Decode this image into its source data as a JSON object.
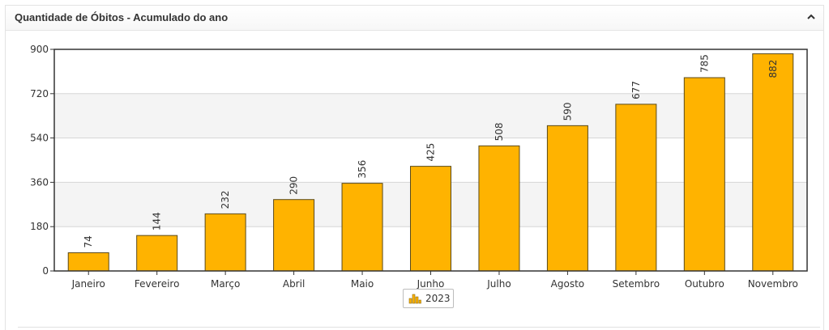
{
  "panel": {
    "title": "Quantidade de Óbitos - Acumulado do ano",
    "collapse_icon": "chevron-up-icon"
  },
  "colors": {
    "bar_fill": "#FFB300",
    "bar_stroke": "#5a4a1a",
    "band": "#f4f4f4",
    "grid": "#d6d6d6"
  },
  "chart_data": {
    "type": "bar",
    "title": "",
    "xlabel": "",
    "ylabel": "",
    "ylim": [
      0,
      900
    ],
    "yticks": [
      0,
      180,
      360,
      540,
      720,
      900
    ],
    "categories": [
      "Janeiro",
      "Fevereiro",
      "Março",
      "Abril",
      "Maio",
      "Junho",
      "Julho",
      "Agosto",
      "Setembro",
      "Outubro",
      "Novembro"
    ],
    "series": [
      {
        "name": "2023",
        "values": [
          74,
          144,
          232,
          290,
          356,
          425,
          508,
          590,
          677,
          785,
          882
        ]
      }
    ],
    "legend_position": "bottom-center",
    "grid": true
  }
}
